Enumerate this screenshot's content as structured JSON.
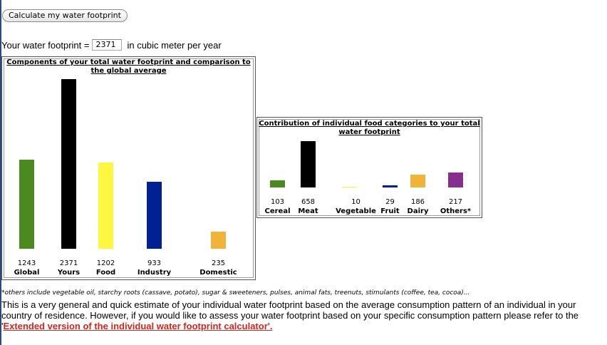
{
  "calculate_button": "Calculate my water footprint",
  "footprint": {
    "label": "Your water footprint =",
    "value": "2371",
    "unit": "in cubic meter per year"
  },
  "chart_data": [
    {
      "type": "bar",
      "title": "Components of your total water footprint and comparison to the global average",
      "title_lines": [
        "Components of your total water footprint and comparison to",
        "the global average"
      ],
      "categories": [
        "Global",
        "Yours",
        "Food",
        "Industry",
        "Domestic"
      ],
      "values": [
        1243,
        2371,
        1202,
        933,
        235
      ],
      "value_labels": [
        "1243",
        "2371",
        "1202",
        "933",
        "235"
      ],
      "colors": [
        "#4b8a1e",
        "#000000",
        "#fdf73f",
        "#002193",
        "#f0b438"
      ],
      "xlabel": "",
      "ylabel": "",
      "ylim": [
        0,
        2371
      ],
      "grid": false,
      "legend": "none"
    },
    {
      "type": "bar",
      "title": "Contribution of individual food categories to your total water footprint",
      "title_lines": [
        "Contribution of individual food categories to your total",
        "water footprint"
      ],
      "categories": [
        "Cereal",
        "Meat",
        "Vegetable",
        "Fruit",
        "Dairy",
        "Others*"
      ],
      "values": [
        103,
        658,
        10,
        29,
        186,
        217
      ],
      "value_labels": [
        "103",
        "658",
        "10",
        "29",
        "186",
        "217"
      ],
      "colors": [
        "#4b8a1e",
        "#000000",
        "#fdf73f",
        "#002193",
        "#f0b438",
        "#84308c"
      ],
      "xlabel": "",
      "ylabel": "",
      "ylim": [
        0,
        658
      ],
      "grid": false,
      "legend": "none"
    }
  ],
  "footnote": "*others include vegetable oil, starchy roots (cassave, potato), sugar & sweeteners, pulses, animal fats, treenuts, stimulants (coffee, tea, cocoa)...",
  "description": {
    "text": "This is a very general and quick estimate of your individual water footprint based on the average consumption pattern of an individual in your country of residence. However, if you would like to assess your water footprint based on your specific consumption pattern please refer to the '",
    "link": "Extended version of the individual water footprint calculator'."
  }
}
